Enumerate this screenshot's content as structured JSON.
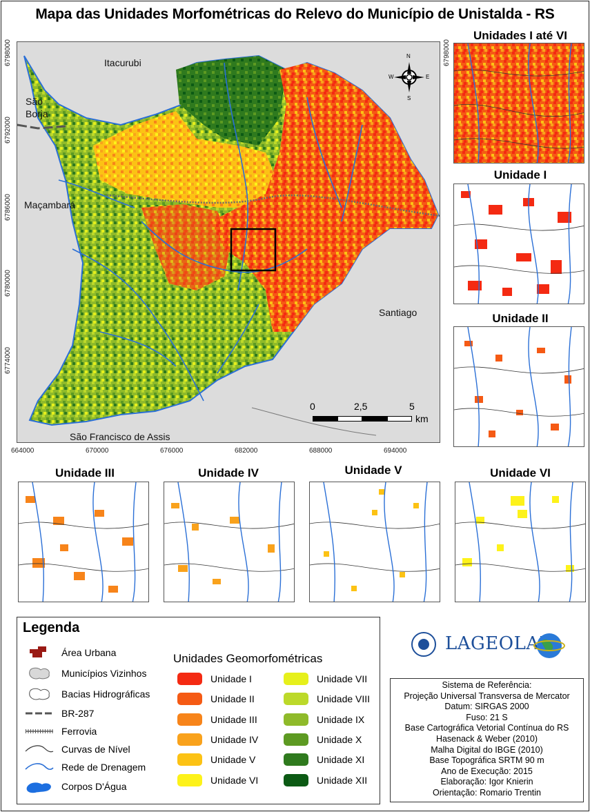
{
  "title": "Mapa das Unidades Morfométricas do Relevo do Município de Unistalda - RS",
  "main_map": {
    "neighbors": {
      "north": "Itacurubi",
      "northwest_line1": "São",
      "northwest_line2": "Borja",
      "west": "Maçambará",
      "east": "Santiago",
      "south": "São Francisco de Assis"
    },
    "x_ticks": [
      "664000",
      "670000",
      "676000",
      "682000",
      "688000",
      "694000"
    ],
    "y_ticks": [
      "6798000",
      "6792000",
      "6786000",
      "6780000",
      "6774000"
    ],
    "scale_bar": {
      "labels": [
        "0",
        "2,5",
        "5"
      ],
      "unit": "km"
    },
    "north_arrow": {
      "n": "N",
      "s": "S",
      "e": "E",
      "w": "W"
    }
  },
  "insets": {
    "all": "Unidades I até VI",
    "u1": "Unidade I",
    "u2": "Unidade II",
    "u3": "Unidade III",
    "u4": "Unidade IV",
    "u5": "Unidade V",
    "u6": "Unidade VI"
  },
  "legend": {
    "title": "Legenda",
    "items": {
      "urban": "Área Urbana",
      "neighbors": "Municípios Vizinhos",
      "basins": "Bacias Hidrográficas",
      "road": "BR-287",
      "railway": "Ferrovia",
      "contours": "Curvas de Nível",
      "drainage": "Rede de Drenagem",
      "water": "Corpos D'Água"
    },
    "units_title": "Unidades Geomorfométricas",
    "units": [
      {
        "label": "Unidade I",
        "color": "#f42a12"
      },
      {
        "label": "Unidade II",
        "color": "#f55a14"
      },
      {
        "label": "Unidade III",
        "color": "#f7841a"
      },
      {
        "label": "Unidade IV",
        "color": "#f9a21c"
      },
      {
        "label": "Unidade V",
        "color": "#fcc214"
      },
      {
        "label": "Unidade VI",
        "color": "#fdf21a"
      },
      {
        "label": "Unidade VII",
        "color": "#e6f01c"
      },
      {
        "label": "Unidade VIII",
        "color": "#bcd92a"
      },
      {
        "label": "Unidade IX",
        "color": "#8fba2a"
      },
      {
        "label": "Unidade X",
        "color": "#5d9a22"
      },
      {
        "label": "Unidade XI",
        "color": "#2f7a1e"
      },
      {
        "label": "Unidade XII",
        "color": "#0c5a14"
      }
    ]
  },
  "logo": {
    "text": "LAGEOLAM"
  },
  "info": [
    "Sistema de Referência:",
    "Projeção Universal Transversa de Mercator",
    "Datum: SIRGAS 2000",
    "Fuso: 21 S",
    "Base Cartográfica Vetorial Contínua do RS",
    "Hasenack & Weber (2010)",
    "Malha Digital do IBGE (2010)",
    "Base Topográfica SRTM 90 m",
    "Ano de Execução: 2015",
    "Elaboração: Igor Knierin",
    "Orientação: Romario Trentin"
  ],
  "colors": {
    "drainage": "#2a6fd6",
    "background": "#dcdcdc"
  }
}
